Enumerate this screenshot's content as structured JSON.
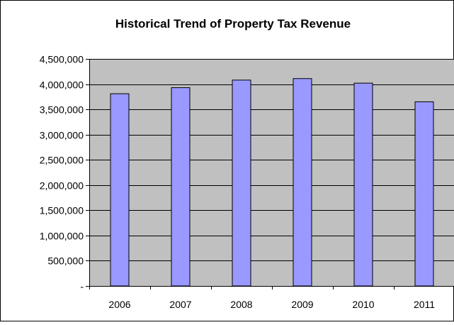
{
  "chart_data": {
    "type": "bar",
    "title": "Historical Trend of Property Tax Revenue",
    "xlabel": "",
    "ylabel": "",
    "categories": [
      "2006",
      "2007",
      "2008",
      "2009",
      "2010",
      "2011"
    ],
    "values": [
      3810000,
      3930000,
      4080000,
      4110000,
      4020000,
      3650000
    ],
    "ylim": [
      0,
      4500000
    ],
    "y_ticks": [
      0,
      500000,
      1000000,
      1500000,
      2000000,
      2500000,
      3000000,
      3500000,
      4000000,
      4500000
    ],
    "y_tick_labels": [
      "-",
      "500,000",
      "1,000,000",
      "1,500,000",
      "2,000,000",
      "2,500,000",
      "3,000,000",
      "3,500,000",
      "4,000,000",
      "4,500,000"
    ],
    "grid": true,
    "legend": "none",
    "colors": {
      "bar_fill": "#9999ff",
      "bar_stroke": "#000000",
      "plot_background": "#c0c0c0",
      "gridline": "#000000",
      "text": "#000000"
    }
  }
}
